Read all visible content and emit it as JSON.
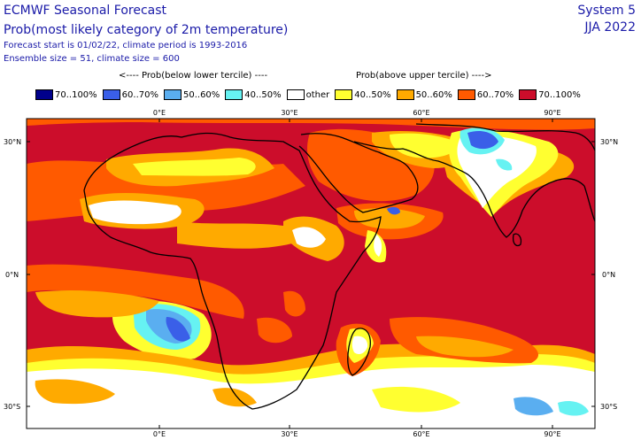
{
  "header": {
    "title": "ECMWF Seasonal Forecast",
    "subtitle": "Prob(most likely category of 2m temperature)",
    "info_line1": "Forecast start is 01/02/22, climate period is 1993-2016",
    "info_line2": "Ensemble size = 51, climate size = 600",
    "system": "System 5",
    "period": "JJA 2022"
  },
  "legend": {
    "below_label": "<---- Prob(below lower tercile) ----",
    "above_label": "Prob(above upper tercile) ---->",
    "items": [
      {
        "label": "70..100%",
        "color": "#00008b"
      },
      {
        "label": "60..70%",
        "color": "#3a5fe8"
      },
      {
        "label": "50..60%",
        "color": "#5aaef0"
      },
      {
        "label": "40..50%",
        "color": "#66f2f2"
      },
      {
        "label": "other",
        "color": "#ffffff"
      },
      {
        "label": "40..50%",
        "color": "#ffff30"
      },
      {
        "label": "50..60%",
        "color": "#ffaa00"
      },
      {
        "label": "60..70%",
        "color": "#ff5a00"
      },
      {
        "label": "70..100%",
        "color": "#cc0d2b"
      }
    ]
  },
  "map": {
    "lon_ticks": [
      "0°E",
      "30°E",
      "60°E",
      "90°E"
    ],
    "lat_ticks": [
      "30°N",
      "0°N",
      "30°S"
    ]
  }
}
